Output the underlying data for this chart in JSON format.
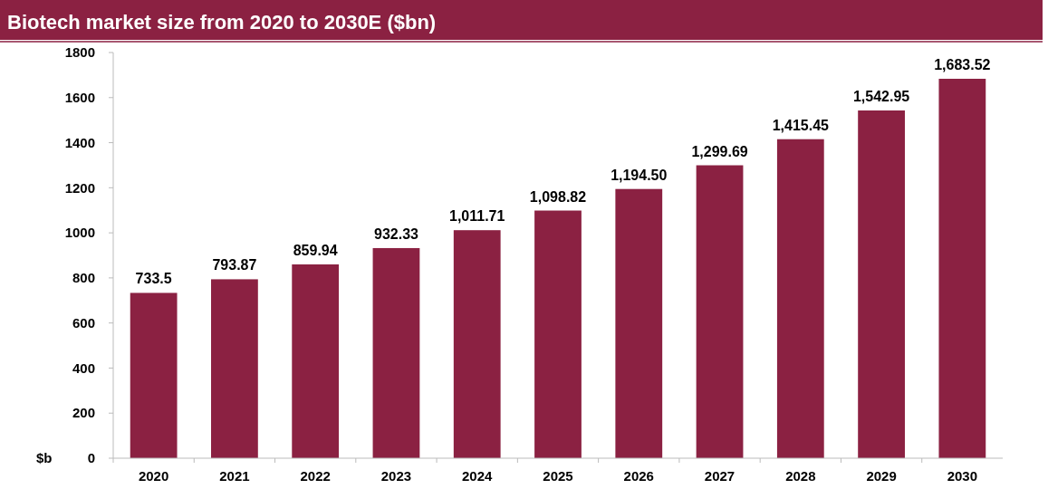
{
  "chart_data": {
    "type": "bar",
    "title": "Biotech market size from 2020 to 2030E ($bn)",
    "ylabel": "$b",
    "categories": [
      "2020",
      "2021",
      "2022",
      "2023",
      "2024",
      "2025",
      "2026",
      "2027",
      "2028",
      "2029",
      "2030"
    ],
    "values": [
      733.5,
      793.87,
      859.94,
      932.33,
      1011.71,
      1098.82,
      1194.5,
      1299.69,
      1415.45,
      1542.95,
      1683.52
    ],
    "value_labels": [
      "733.5",
      "793.87",
      "859.94",
      "932.33",
      "1,011.71",
      "1,098.82",
      "1,194.50",
      "1,299.69",
      "1,415.45",
      "1,542.95",
      "1,683.52"
    ],
    "color": "#8b2142",
    "ylim": [
      0,
      1800
    ],
    "yticks": [
      0,
      200,
      400,
      600,
      800,
      1000,
      1200,
      1400,
      1600,
      1800
    ],
    "grid": false
  }
}
